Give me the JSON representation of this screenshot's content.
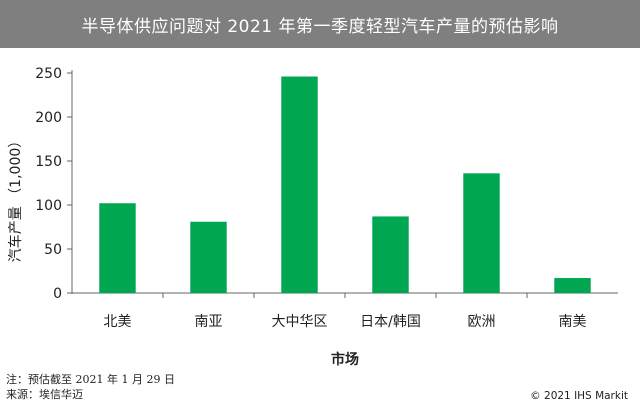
{
  "chart_data": {
    "type": "bar",
    "title": "半导体供应问题对 2021 年第一季度轻型汽车产量的预估影响",
    "categories": [
      "北美",
      "南亚",
      "大中华区",
      "日本/韩国",
      "欧洲",
      "南美"
    ],
    "values": [
      102,
      81,
      246,
      87,
      136,
      17
    ],
    "xlabel": "市场",
    "ylabel": "汽车产量 （1,000）",
    "ylim": [
      0,
      250
    ],
    "yticks": [
      0,
      50,
      100,
      150,
      200,
      250
    ],
    "bar_color": "#00a650",
    "grid": false,
    "legend": "none"
  },
  "footer": {
    "note": "注：预估截至 2021 年 1 月 29 日",
    "source": "来源：埃信华迈",
    "copyright": "© 2021 IHS Markit"
  },
  "colors": {
    "title_bg": "#7f7f7f",
    "title_text": "#ffffff"
  }
}
